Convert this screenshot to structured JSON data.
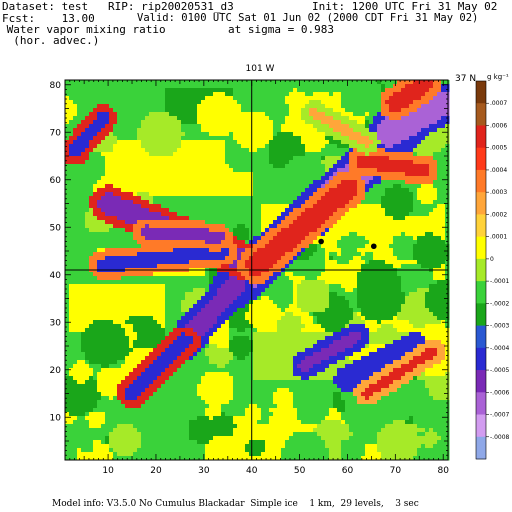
{
  "header": {
    "dataset": "Dataset: test   RIP: rip20020531_d3",
    "init": "Init: 1200 UTC Fri 31 May 02",
    "fcst": "Fcst:    13.00",
    "valid": "Valid: 0100 UTC Sat 01 Jun 02 (2000 CDT Fri 31 May 02)",
    "field_line1": " Water vapor mixing ratio",
    "field_line2": "  (hor. advec.)",
    "level": "at sigma = 0.983"
  },
  "footer": "Model info: V3.5.0 No Cumulus Blackadar  Simple ice    1 km,  29 levels,    3 sec",
  "chart_data": {
    "type": "heatmap",
    "title": "",
    "top_labels": {
      "center": "101 W",
      "right": "37 N"
    },
    "unit": "g kg⁻¹",
    "xlim": [
      1,
      81
    ],
    "ylim": [
      1,
      81
    ],
    "xticks": [
      10,
      20,
      30,
      40,
      50,
      60,
      70,
      80
    ],
    "yticks": [
      10,
      20,
      30,
      40,
      50,
      60,
      70,
      80
    ],
    "reference_lines": {
      "x": 40,
      "y": 41
    },
    "points": [
      {
        "x": 54.5,
        "y": 47
      },
      {
        "x": 65.5,
        "y": 46
      }
    ],
    "colorbar": {
      "colors": [
        "#7a3a0c",
        "#a65a1e",
        "#e0241c",
        "#ff3a1a",
        "#ff7a28",
        "#ffa63a",
        "#ffd23a",
        "#ffff00",
        "#a6ea28",
        "#3ad23a",
        "#1aa61a",
        "#2a58d2",
        "#2a2ad2",
        "#7a2ab6",
        "#aa62d6",
        "#d29cf0",
        "#8fa8e8"
      ],
      "labels": [
        ".0007",
        ".0006",
        ".0005",
        ".0004",
        ".0003",
        ".0002",
        ".0001",
        "0",
        "-.0001",
        "-.0002",
        "-.0003",
        "-.0004",
        "-.0005",
        "-.0006",
        "-.0007",
        "-.0008"
      ]
    },
    "palette_by_level": [
      "#f2e48a",
      "#ffff00",
      "#a6ea28",
      "#3ad23a",
      "#1aa61a",
      "#ffa63a",
      "#ff7a28",
      "#e0241c",
      "#2a2ad2",
      "#7a2ab6",
      "#aa62d6",
      "#d29cf0"
    ],
    "features": [
      {
        "x0": 36,
        "y0": 37,
        "x1": 71,
        "y1": 70,
        "w": 3,
        "lvl": 10,
        "halo": 8
      },
      {
        "x0": 69,
        "y0": 70,
        "x1": 79,
        "y1": 76,
        "w": 3,
        "lvl": 10,
        "halo": 8
      },
      {
        "x0": 37,
        "y0": 38,
        "x1": 25,
        "y1": 25,
        "w": 2,
        "lvl": 9,
        "halo": 8
      },
      {
        "x0": 26,
        "y0": 26,
        "x1": 15,
        "y1": 15,
        "w": 1.6,
        "lvl": 8,
        "halo": 7
      },
      {
        "x0": 38,
        "y0": 43,
        "x1": 10,
        "y1": 55,
        "w": 2.2,
        "lvl": 9,
        "halo": 7
      },
      {
        "x0": 34,
        "y0": 45,
        "x1": 9,
        "y1": 42,
        "w": 1.5,
        "lvl": 8,
        "halo": 6
      },
      {
        "x0": 33,
        "y0": 48,
        "x1": 18,
        "y1": 49,
        "w": 1.3,
        "lvl": 9,
        "halo": 6
      },
      {
        "x0": 41,
        "y0": 42,
        "x1": 60,
        "y1": 58,
        "w": 2.2,
        "lvl": 7,
        "halo": 6
      },
      {
        "x0": 63,
        "y0": 64,
        "x1": 76,
        "y1": 62,
        "w": 1.4,
        "lvl": 7,
        "halo": 6
      },
      {
        "x0": 70,
        "y0": 76,
        "x1": 76,
        "y1": 80,
        "w": 1.8,
        "lvl": 7,
        "halo": 6
      },
      {
        "x0": 51,
        "y0": 21,
        "x1": 62,
        "y1": 27,
        "w": 1.2,
        "lvl": 9,
        "halo": 8
      },
      {
        "x0": 60,
        "y0": 18,
        "x1": 74,
        "y1": 25,
        "w": 1.2,
        "lvl": 8,
        "halo": 8
      },
      {
        "x0": 64,
        "y0": 15,
        "x1": 78,
        "y1": 24,
        "w": 1.0,
        "lvl": 7,
        "halo": 5
      },
      {
        "x0": 3,
        "y0": 66,
        "x1": 9,
        "y1": 73,
        "w": 1.3,
        "lvl": 8,
        "halo": 7
      },
      {
        "x0": 53,
        "y0": 74,
        "x1": 64,
        "y1": 68,
        "w": 1.0,
        "lvl": 5,
        "halo": 2
      },
      {
        "x0": 54,
        "y0": 47,
        "x1": 58,
        "y1": 45,
        "w": 0.8,
        "lvl": 1,
        "halo": 0
      },
      {
        "x0": 63,
        "y0": 45,
        "x1": 67,
        "y1": 46,
        "w": 0.8,
        "lvl": 1,
        "halo": 0
      }
    ],
    "regions": [
      {
        "x0": 42,
        "y0": 22,
        "x1": 80,
        "y1": 55,
        "lvl": 1
      },
      {
        "x0": 40,
        "y0": 18,
        "x1": 80,
        "y1": 28,
        "lvl": 2
      },
      {
        "x0": 2,
        "y0": 28,
        "x1": 22,
        "y1": 38,
        "lvl": 1
      },
      {
        "x0": 8,
        "y0": 40,
        "x1": 30,
        "y1": 46,
        "lvl": 1
      },
      {
        "x0": 8,
        "y0": 57,
        "x1": 40,
        "y1": 68,
        "lvl": 1
      },
      {
        "x0": 30,
        "y0": 1,
        "x1": 72,
        "y1": 12,
        "lvl": 1
      },
      {
        "x0": 1,
        "y0": 1,
        "x1": 12,
        "y1": 20,
        "lvl": 3
      },
      {
        "x0": 72,
        "y0": 1,
        "x1": 81,
        "y1": 14,
        "lvl": 3
      },
      {
        "x0": 44,
        "y0": 72,
        "x1": 60,
        "y1": 81,
        "lvl": 3
      },
      {
        "x0": 22,
        "y0": 72,
        "x1": 36,
        "y1": 79,
        "lvl": 4
      }
    ]
  }
}
